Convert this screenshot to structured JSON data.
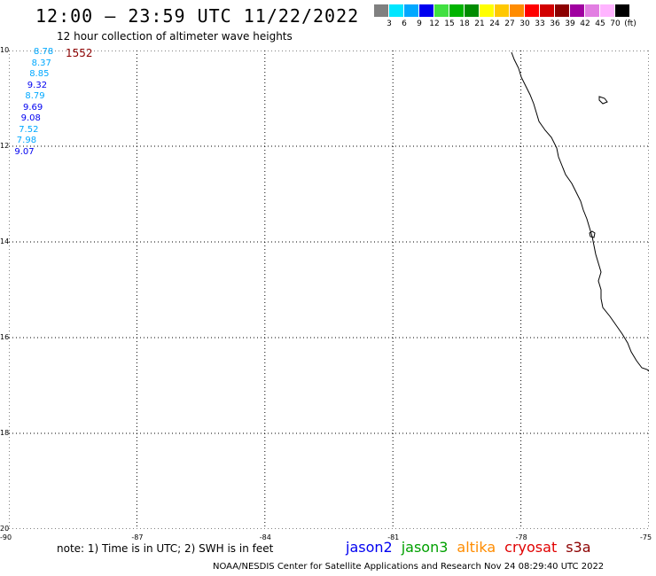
{
  "title": "12:00 – 23:59 UTC 11/22/2022",
  "subtitle": "12 hour collection of altimeter wave heights",
  "legend": {
    "colors": [
      "#808080",
      "#00e6ff",
      "#00a8ff",
      "#0000f0",
      "#40e040",
      "#00b400",
      "#008c00",
      "#ffff00",
      "#ffc800",
      "#ff8c00",
      "#ff0000",
      "#d20000",
      "#8c0000",
      "#a000a0",
      "#e27ee2",
      "#ffb4ff",
      "#000000"
    ],
    "labels": [
      "3",
      "6",
      "9",
      "12",
      "15",
      "18",
      "21",
      "24",
      "27",
      "30",
      "33",
      "36",
      "39",
      "42",
      "45",
      "70",
      "(ft)"
    ]
  },
  "axes": {
    "y_labels": [
      "10",
      "12",
      "14",
      "16",
      "18",
      "20"
    ],
    "x_labels": [
      "-90",
      "-87",
      "-84",
      "-81",
      "-78",
      "-75"
    ]
  },
  "points": {
    "values": [
      "8.78",
      "8.37",
      "8.85",
      "9.32",
      "8.79",
      "9.69",
      "9.08",
      "7.52",
      "7.98",
      "9.07"
    ],
    "colors": [
      "#00a8ff",
      "#00a8ff",
      "#00a8ff",
      "#0000f0",
      "#00a8ff",
      "#0000f0",
      "#0000f0",
      "#00a8ff",
      "#00a8ff",
      "#0000f0"
    ],
    "time_label": "1552"
  },
  "footer": {
    "note": "note:  1) Time is in UTC;  2) SWH is in feet",
    "satellites": [
      {
        "name": "jason2",
        "color": "#0000f0"
      },
      {
        "name": "jason3",
        "color": "#00a000"
      },
      {
        "name": "altika",
        "color": "#ff8c00"
      },
      {
        "name": "cryosat",
        "color": "#e00000"
      },
      {
        "name": "s3a",
        "color": "#8c0000"
      }
    ],
    "credit": "NOAA/NESDIS Center for Satellite Applications and Research    Nov 24 08:29:40 UTC 2022"
  }
}
